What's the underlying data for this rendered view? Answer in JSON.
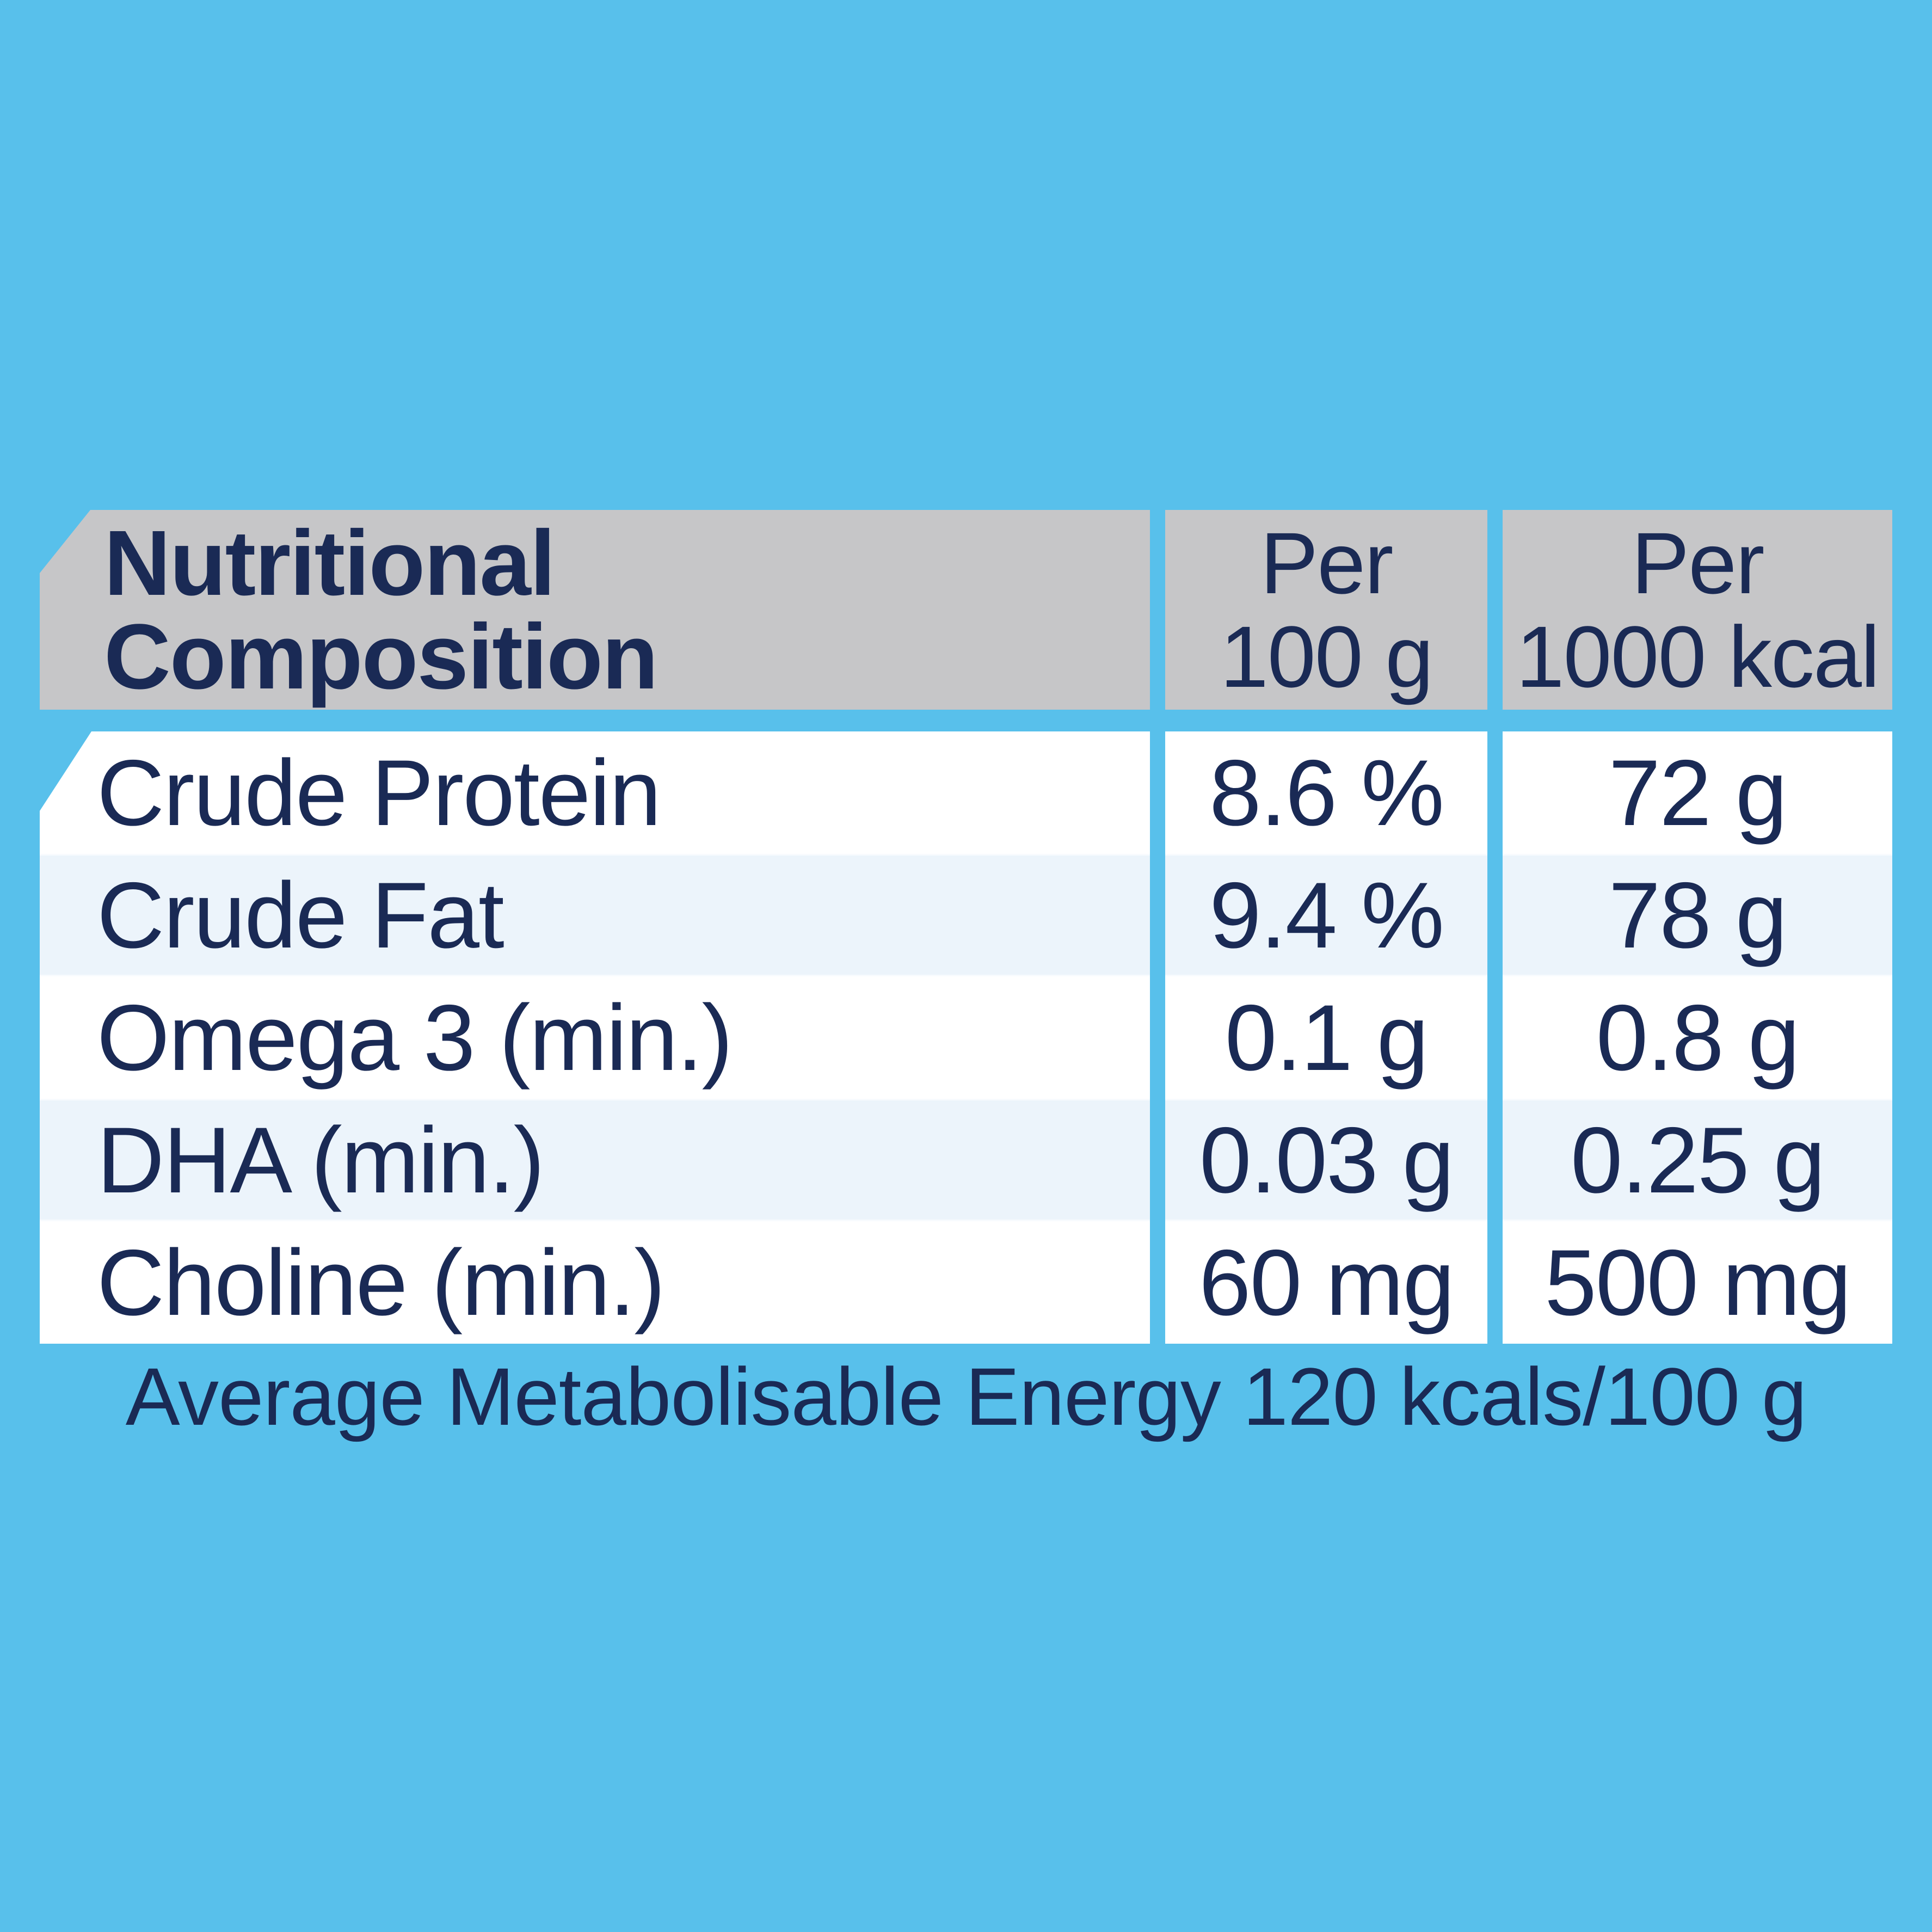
{
  "colors": {
    "background": "#58c0eb",
    "header_gray": "#c6c6c8",
    "row_white": "#ffffff",
    "row_tint": "#ecf4fb",
    "text_navy": "#1a2a55"
  },
  "table": {
    "header": {
      "title_line1": "Nutritional",
      "title_line2": "Composition",
      "col2_line1": "Per",
      "col2_line2": "100 g",
      "col3_line1": "Per",
      "col3_line2": "1000 kcal"
    },
    "rows": [
      {
        "label": "Crude Protein",
        "per_100g": "8.6 %",
        "per_1000kcal": "72 g"
      },
      {
        "label": "Crude Fat",
        "per_100g": "9.4 %",
        "per_1000kcal": "78 g"
      },
      {
        "label": "Omega 3 (min.)",
        "per_100g": "0.1 g",
        "per_1000kcal": "0.8 g"
      },
      {
        "label": "DHA (min.)",
        "per_100g": "0.03 g",
        "per_1000kcal": "0.25 g"
      },
      {
        "label": "Choline (min.)",
        "per_100g": "60 mg",
        "per_1000kcal": "500 mg"
      }
    ],
    "footer": "Average Metabolisable Energy 120 kcals/100 g"
  }
}
